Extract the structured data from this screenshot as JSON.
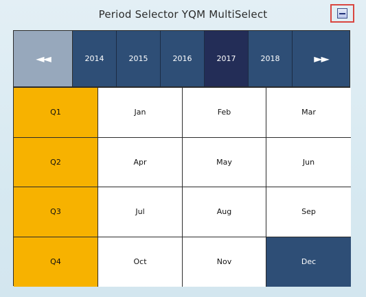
{
  "title": "Period Selector YQM MultiSelect",
  "minimize_icon": "minimize-icon",
  "nav": {
    "prev": "◄◄",
    "next": "►►"
  },
  "years": [
    {
      "label": "2014",
      "selected": false
    },
    {
      "label": "2015",
      "selected": false
    },
    {
      "label": "2016",
      "selected": false
    },
    {
      "label": "2017",
      "selected": true
    },
    {
      "label": "2018",
      "selected": false
    }
  ],
  "rows": [
    {
      "quarter": "Q1",
      "months": [
        {
          "label": "Jan",
          "selected": false
        },
        {
          "label": "Feb",
          "selected": false
        },
        {
          "label": "Mar",
          "selected": false
        }
      ]
    },
    {
      "quarter": "Q2",
      "months": [
        {
          "label": "Apr",
          "selected": false
        },
        {
          "label": "May",
          "selected": false
        },
        {
          "label": "Jun",
          "selected": false
        }
      ]
    },
    {
      "quarter": "Q3",
      "months": [
        {
          "label": "Jul",
          "selected": false
        },
        {
          "label": "Aug",
          "selected": false
        },
        {
          "label": "Sep",
          "selected": false
        }
      ]
    },
    {
      "quarter": "Q4",
      "months": [
        {
          "label": "Oct",
          "selected": false
        },
        {
          "label": "Nov",
          "selected": false
        },
        {
          "label": "Dec",
          "selected": true
        }
      ]
    }
  ],
  "colors": {
    "quarter": "#f7b200",
    "year_bg": "#2e4e76",
    "year_selected": "#232d57",
    "nav_prev_bg": "#97a8bc",
    "month_selected": "#2e4e76",
    "highlight_border": "#d9453f"
  }
}
